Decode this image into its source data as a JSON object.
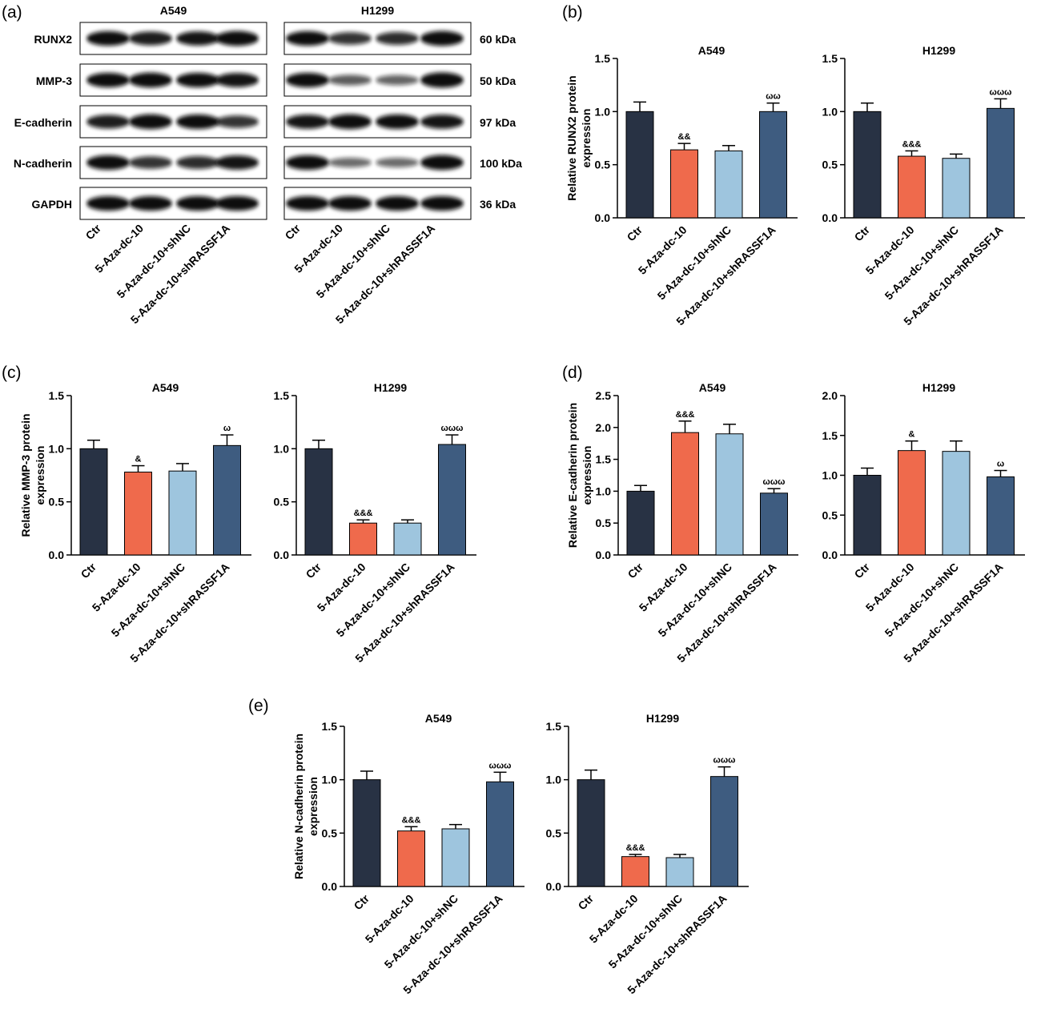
{
  "panels": {
    "a": "(a)",
    "b": "(b)",
    "c": "(c)",
    "d": "(d)",
    "e": "(e)"
  },
  "blot": {
    "cell_lines": [
      "A549",
      "H1299"
    ],
    "proteins": [
      "RUNX2",
      "MMP-3",
      "E-cadherin",
      "N-cadherin",
      "GAPDH"
    ],
    "sizes": [
      "60 kDa",
      "50 kDa",
      "97 kDa",
      "100 kDa",
      "36 kDa"
    ],
    "groups": [
      "Ctr",
      "5-Aza-dc-10",
      "5-Aza-dc-10+shNC",
      "5-Aza-dc-10+shRASSF1A"
    ],
    "intensity": {
      "A549": [
        [
          1,
          0.9,
          0.95,
          1.05
        ],
        [
          1,
          1.05,
          1,
          0.95
        ],
        [
          0.9,
          1.05,
          1.0,
          0.75
        ],
        [
          1,
          0.75,
          0.8,
          0.95
        ],
        [
          1,
          1,
          1,
          1
        ]
      ],
      "H1299": [
        [
          1,
          0.75,
          0.8,
          1.05
        ],
        [
          1,
          0.5,
          0.45,
          1.1
        ],
        [
          0.95,
          1.05,
          1.0,
          0.95
        ],
        [
          1,
          0.4,
          0.4,
          1.05
        ],
        [
          1,
          1,
          1,
          1
        ]
      ]
    }
  },
  "colors": {
    "ctr": "#283244",
    "aza": "#ef6a4c",
    "shnc": "#9ec5de",
    "shr": "#3e5c80"
  },
  "chart_data": [
    {
      "panel": "b",
      "type": "bar",
      "title": "A549",
      "ylabel_lines": [
        "Relative RUNX2 protein",
        "expression"
      ],
      "categories": [
        "Ctr",
        "5-Aza-dc-10",
        "5-Aza-dc-10+shNC",
        "5-Aza-dc-10+shRASSF1A"
      ],
      "values": [
        1.0,
        0.64,
        0.63,
        1.0
      ],
      "errors": [
        0.09,
        0.06,
        0.05,
        0.08
      ],
      "annotations": [
        "",
        "&&",
        "",
        "ωω"
      ],
      "ylim": [
        0,
        1.5
      ],
      "ticks": [
        "0.0",
        "0.5",
        "1.0",
        "1.5"
      ]
    },
    {
      "panel": "b",
      "type": "bar",
      "title": "H1299",
      "categories": [
        "Ctr",
        "5-Aza-dc-10",
        "5-Aza-dc-10+shNC",
        "5-Aza-dc-10+shRASSF1A"
      ],
      "values": [
        1.0,
        0.58,
        0.56,
        1.03
      ],
      "errors": [
        0.08,
        0.05,
        0.04,
        0.09
      ],
      "annotations": [
        "",
        "&&&",
        "",
        "ωωω"
      ],
      "ylim": [
        0,
        1.5
      ],
      "ticks": [
        "0.0",
        "0.5",
        "1.0",
        "1.5"
      ]
    },
    {
      "panel": "c",
      "type": "bar",
      "title": "A549",
      "ylabel_lines": [
        "Relative MMP-3 protein",
        "expression"
      ],
      "categories": [
        "Ctr",
        "5-Aza-dc-10",
        "5-Aza-dc-10+shNC",
        "5-Aza-dc-10+shRASSF1A"
      ],
      "values": [
        1.0,
        0.78,
        0.79,
        1.03
      ],
      "errors": [
        0.08,
        0.06,
        0.07,
        0.1
      ],
      "annotations": [
        "",
        "&",
        "",
        "ω"
      ],
      "ylim": [
        0,
        1.5
      ],
      "ticks": [
        "0.0",
        "0.5",
        "1.0",
        "1.5"
      ]
    },
    {
      "panel": "c",
      "type": "bar",
      "title": "H1299",
      "categories": [
        "Ctr",
        "5-Aza-dc-10",
        "5-Aza-dc-10+shNC",
        "5-Aza-dc-10+shRASSF1A"
      ],
      "values": [
        1.0,
        0.3,
        0.3,
        1.04
      ],
      "errors": [
        0.08,
        0.03,
        0.03,
        0.09
      ],
      "annotations": [
        "",
        "&&&",
        "",
        "ωωω"
      ],
      "ylim": [
        0,
        1.5
      ],
      "ticks": [
        "0.0",
        "0.5",
        "1.0",
        "1.5"
      ]
    },
    {
      "panel": "d",
      "type": "bar",
      "title": "A549",
      "ylabel_lines": [
        "Relative E-cadherin protein",
        "expression"
      ],
      "categories": [
        "Ctr",
        "5-Aza-dc-10",
        "5-Aza-dc-10+shNC",
        "5-Aza-dc-10+shRASSF1A"
      ],
      "values": [
        1.0,
        1.92,
        1.9,
        0.97
      ],
      "errors": [
        0.09,
        0.18,
        0.15,
        0.07
      ],
      "annotations": [
        "",
        "&&&",
        "",
        "ωωω"
      ],
      "ylim": [
        0,
        2.5
      ],
      "ticks": [
        "0.0",
        "0.5",
        "1.0",
        "1.5",
        "2.0",
        "2.5"
      ]
    },
    {
      "panel": "d",
      "type": "bar",
      "title": "H1299",
      "categories": [
        "Ctr",
        "5-Aza-dc-10",
        "5-Aza-dc-10+shNC",
        "5-Aza-dc-10+shRASSF1A"
      ],
      "values": [
        1.0,
        1.31,
        1.3,
        0.98
      ],
      "errors": [
        0.09,
        0.12,
        0.13,
        0.08
      ],
      "annotations": [
        "",
        "&",
        "",
        "ω"
      ],
      "ylim": [
        0,
        2.0
      ],
      "ticks": [
        "0.0",
        "0.5",
        "1.0",
        "1.5",
        "2.0"
      ]
    },
    {
      "panel": "e",
      "type": "bar",
      "title": "A549",
      "ylabel_lines": [
        "Relative N-cadherin protein",
        "expression"
      ],
      "categories": [
        "Ctr",
        "5-Aza-dc-10",
        "5-Aza-dc-10+shNC",
        "5-Aza-dc-10+shRASSF1A"
      ],
      "values": [
        1.0,
        0.52,
        0.54,
        0.98
      ],
      "errors": [
        0.08,
        0.04,
        0.04,
        0.09
      ],
      "annotations": [
        "",
        "&&&",
        "",
        "ωωω"
      ],
      "ylim": [
        0,
        1.5
      ],
      "ticks": [
        "0.0",
        "0.5",
        "1.0",
        "1.5"
      ]
    },
    {
      "panel": "e",
      "type": "bar",
      "title": "H1299",
      "categories": [
        "Ctr",
        "5-Aza-dc-10",
        "5-Aza-dc-10+shNC",
        "5-Aza-dc-10+shRASSF1A"
      ],
      "values": [
        1.0,
        0.28,
        0.27,
        1.03
      ],
      "errors": [
        0.09,
        0.02,
        0.03,
        0.09
      ],
      "annotations": [
        "",
        "&&&",
        "",
        "ωωω"
      ],
      "ylim": [
        0,
        1.5
      ],
      "ticks": [
        "0.0",
        "0.5",
        "1.0",
        "1.5"
      ]
    }
  ]
}
